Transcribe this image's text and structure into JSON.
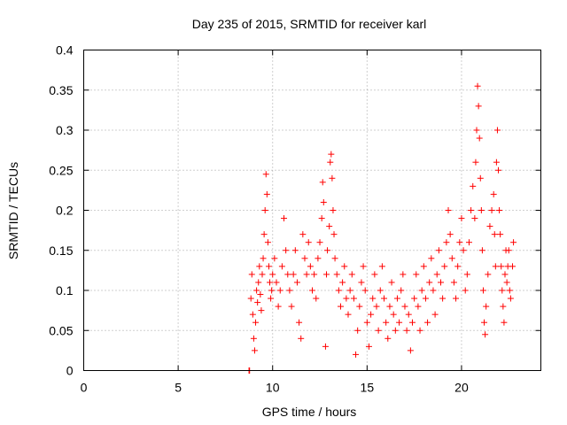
{
  "chart_data": {
    "type": "scatter",
    "title": "Day 235 of 2015, SRMTID for receiver karl",
    "xlabel": "GPS time / hours",
    "ylabel": "SRMTID / TECUs",
    "xlim": [
      0,
      24.2
    ],
    "ylim": [
      0,
      0.4
    ],
    "xticks": [
      0,
      5,
      10,
      15,
      20
    ],
    "xtick_labels": [
      "0",
      "5",
      "10",
      "15",
      "20"
    ],
    "yticks": [
      0,
      0.05,
      0.1,
      0.15,
      0.2,
      0.25,
      0.3,
      0.35,
      0.4
    ],
    "ytick_labels": [
      "0",
      "0.05",
      "0.1",
      "0.15",
      "0.2",
      "0.25",
      "0.3",
      "0.35",
      "0.4"
    ],
    "grid": true,
    "marker": "+",
    "color": "#ff0000",
    "series": [
      {
        "name": "SRMTID",
        "points": [
          [
            8.75,
            0.0
          ],
          [
            8.78,
            0.0
          ],
          [
            8.85,
            0.09
          ],
          [
            8.9,
            0.12
          ],
          [
            8.95,
            0.07
          ],
          [
            9.0,
            0.04
          ],
          [
            9.05,
            0.025
          ],
          [
            9.1,
            0.06
          ],
          [
            9.15,
            0.1
          ],
          [
            9.2,
            0.085
          ],
          [
            9.25,
            0.11
          ],
          [
            9.3,
            0.13
          ],
          [
            9.35,
            0.095
          ],
          [
            9.4,
            0.075
          ],
          [
            9.45,
            0.12
          ],
          [
            9.5,
            0.14
          ],
          [
            9.55,
            0.17
          ],
          [
            9.6,
            0.2
          ],
          [
            9.65,
            0.245
          ],
          [
            9.7,
            0.22
          ],
          [
            9.75,
            0.16
          ],
          [
            9.8,
            0.13
          ],
          [
            9.85,
            0.11
          ],
          [
            9.9,
            0.09
          ],
          [
            9.95,
            0.1
          ],
          [
            10.0,
            0.12
          ],
          [
            10.1,
            0.14
          ],
          [
            10.2,
            0.11
          ],
          [
            10.3,
            0.08
          ],
          [
            10.4,
            0.1
          ],
          [
            10.5,
            0.13
          ],
          [
            10.6,
            0.19
          ],
          [
            10.7,
            0.15
          ],
          [
            10.8,
            0.12
          ],
          [
            10.9,
            0.1
          ],
          [
            11.0,
            0.08
          ],
          [
            11.1,
            0.12
          ],
          [
            11.2,
            0.15
          ],
          [
            11.3,
            0.11
          ],
          [
            11.4,
            0.06
          ],
          [
            11.5,
            0.04
          ],
          [
            11.6,
            0.17
          ],
          [
            11.7,
            0.14
          ],
          [
            11.8,
            0.12
          ],
          [
            11.9,
            0.16
          ],
          [
            12.0,
            0.13
          ],
          [
            12.1,
            0.1
          ],
          [
            12.2,
            0.12
          ],
          [
            12.3,
            0.09
          ],
          [
            12.4,
            0.14
          ],
          [
            12.5,
            0.16
          ],
          [
            12.6,
            0.19
          ],
          [
            12.65,
            0.235
          ],
          [
            12.7,
            0.21
          ],
          [
            12.8,
            0.03
          ],
          [
            12.85,
            0.12
          ],
          [
            12.9,
            0.15
          ],
          [
            13.0,
            0.18
          ],
          [
            13.05,
            0.26
          ],
          [
            13.1,
            0.27
          ],
          [
            13.15,
            0.24
          ],
          [
            13.2,
            0.2
          ],
          [
            13.25,
            0.17
          ],
          [
            13.3,
            0.14
          ],
          [
            13.4,
            0.12
          ],
          [
            13.5,
            0.1
          ],
          [
            13.6,
            0.08
          ],
          [
            13.7,
            0.11
          ],
          [
            13.8,
            0.13
          ],
          [
            13.9,
            0.09
          ],
          [
            14.0,
            0.07
          ],
          [
            14.1,
            0.1
          ],
          [
            14.2,
            0.12
          ],
          [
            14.3,
            0.09
          ],
          [
            14.4,
            0.02
          ],
          [
            14.5,
            0.05
          ],
          [
            14.6,
            0.08
          ],
          [
            14.7,
            0.11
          ],
          [
            14.8,
            0.13
          ],
          [
            14.9,
            0.1
          ],
          [
            15.0,
            0.06
          ],
          [
            15.1,
            0.03
          ],
          [
            15.2,
            0.07
          ],
          [
            15.3,
            0.09
          ],
          [
            15.4,
            0.12
          ],
          [
            15.5,
            0.08
          ],
          [
            15.6,
            0.05
          ],
          [
            15.7,
            0.1
          ],
          [
            15.8,
            0.13
          ],
          [
            15.9,
            0.09
          ],
          [
            16.0,
            0.06
          ],
          [
            16.1,
            0.04
          ],
          [
            16.2,
            0.08
          ],
          [
            16.3,
            0.11
          ],
          [
            16.4,
            0.07
          ],
          [
            16.5,
            0.05
          ],
          [
            16.6,
            0.09
          ],
          [
            16.7,
            0.06
          ],
          [
            16.8,
            0.1
          ],
          [
            16.9,
            0.12
          ],
          [
            17.0,
            0.08
          ],
          [
            17.1,
            0.05
          ],
          [
            17.2,
            0.07
          ],
          [
            17.3,
            0.025
          ],
          [
            17.4,
            0.06
          ],
          [
            17.5,
            0.09
          ],
          [
            17.6,
            0.12
          ],
          [
            17.7,
            0.08
          ],
          [
            17.8,
            0.05
          ],
          [
            17.9,
            0.1
          ],
          [
            18.0,
            0.13
          ],
          [
            18.1,
            0.09
          ],
          [
            18.2,
            0.06
          ],
          [
            18.3,
            0.11
          ],
          [
            18.4,
            0.14
          ],
          [
            18.5,
            0.1
          ],
          [
            18.6,
            0.07
          ],
          [
            18.7,
            0.12
          ],
          [
            18.8,
            0.15
          ],
          [
            18.9,
            0.11
          ],
          [
            19.0,
            0.09
          ],
          [
            19.1,
            0.13
          ],
          [
            19.2,
            0.16
          ],
          [
            19.3,
            0.2
          ],
          [
            19.4,
            0.17
          ],
          [
            19.5,
            0.14
          ],
          [
            19.6,
            0.11
          ],
          [
            19.7,
            0.09
          ],
          [
            19.8,
            0.13
          ],
          [
            19.9,
            0.16
          ],
          [
            20.0,
            0.19
          ],
          [
            20.1,
            0.15
          ],
          [
            20.2,
            0.1
          ],
          [
            20.3,
            0.12
          ],
          [
            20.4,
            0.16
          ],
          [
            20.5,
            0.2
          ],
          [
            20.6,
            0.23
          ],
          [
            20.7,
            0.19
          ],
          [
            20.75,
            0.26
          ],
          [
            20.8,
            0.3
          ],
          [
            20.85,
            0.355
          ],
          [
            20.9,
            0.33
          ],
          [
            20.95,
            0.29
          ],
          [
            21.0,
            0.24
          ],
          [
            21.05,
            0.2
          ],
          [
            21.1,
            0.15
          ],
          [
            21.15,
            0.1
          ],
          [
            21.2,
            0.06
          ],
          [
            21.25,
            0.045
          ],
          [
            21.3,
            0.08
          ],
          [
            21.4,
            0.12
          ],
          [
            21.5,
            0.18
          ],
          [
            21.6,
            0.2
          ],
          [
            21.7,
            0.22
          ],
          [
            21.75,
            0.17
          ],
          [
            21.8,
            0.13
          ],
          [
            21.85,
            0.26
          ],
          [
            21.9,
            0.3
          ],
          [
            21.95,
            0.25
          ],
          [
            22.0,
            0.2
          ],
          [
            22.05,
            0.17
          ],
          [
            22.1,
            0.13
          ],
          [
            22.15,
            0.1
          ],
          [
            22.2,
            0.08
          ],
          [
            22.25,
            0.06
          ],
          [
            22.3,
            0.12
          ],
          [
            22.35,
            0.15
          ],
          [
            22.4,
            0.11
          ],
          [
            22.45,
            0.13
          ],
          [
            22.5,
            0.15
          ],
          [
            22.55,
            0.1
          ],
          [
            22.6,
            0.09
          ],
          [
            22.7,
            0.13
          ],
          [
            22.75,
            0.16
          ]
        ]
      }
    ]
  }
}
